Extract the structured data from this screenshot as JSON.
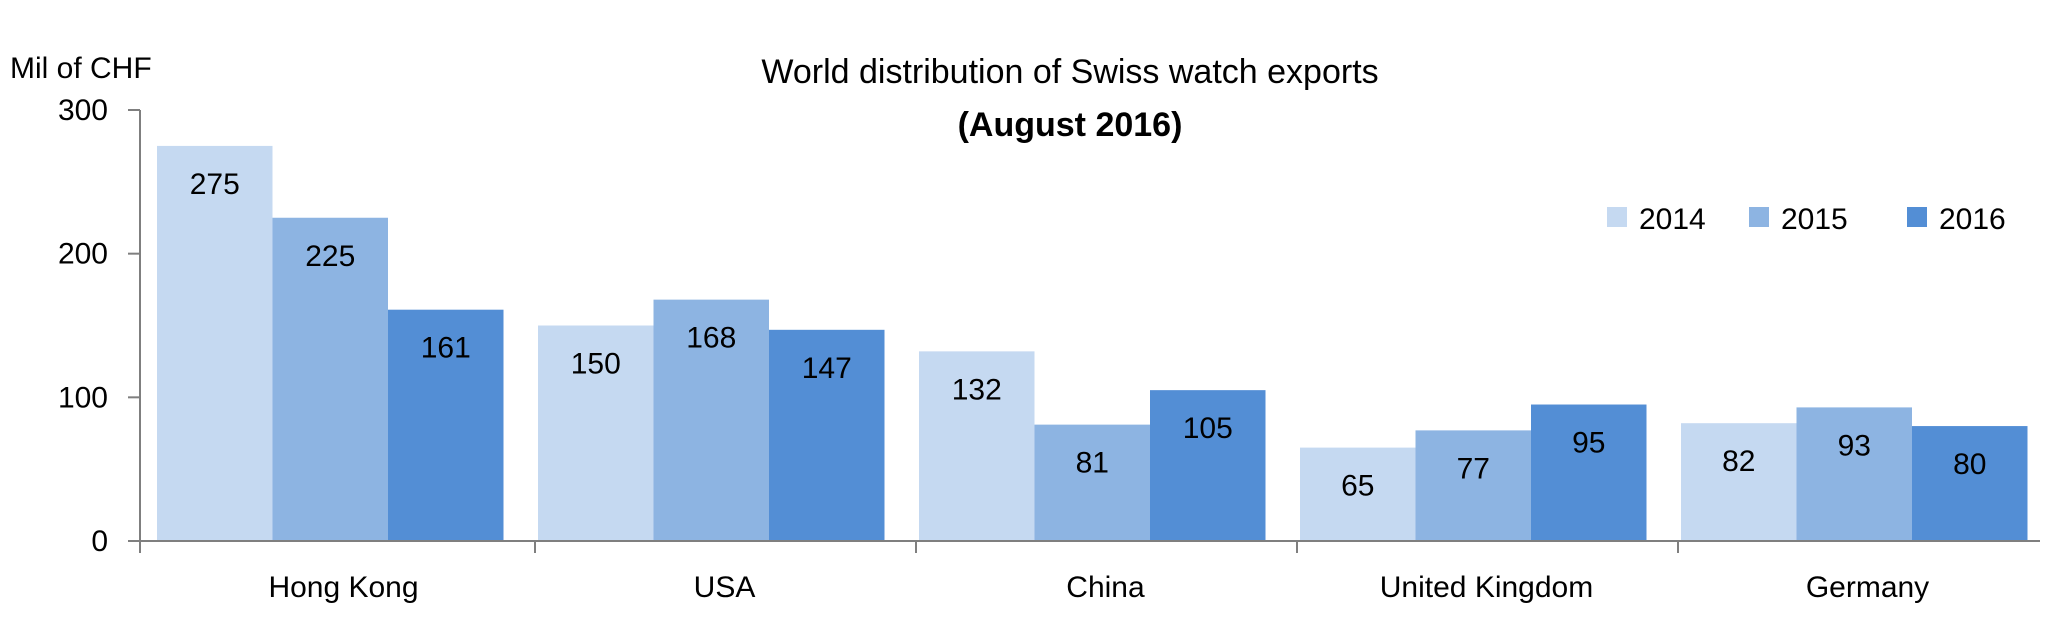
{
  "chart_data": {
    "type": "bar",
    "title": "World distribution of Swiss watch exports",
    "subtitle": "(August 2016)",
    "ylabel": "Mil of CHF",
    "xlabel": "",
    "ylim": [
      0,
      300
    ],
    "yticks": [
      0,
      100,
      200,
      300
    ],
    "categories": [
      "Hong Kong",
      "USA",
      "China",
      "United Kingdom",
      "Germany"
    ],
    "series": [
      {
        "name": "2014",
        "values": [
          275,
          150,
          132,
          65,
          82
        ],
        "color": "#c5d9f1"
      },
      {
        "name": "2015",
        "values": [
          225,
          168,
          81,
          77,
          93
        ],
        "color": "#8db4e2"
      },
      {
        "name": "2016",
        "values": [
          161,
          147,
          105,
          95,
          80
        ],
        "color": "#538ed5"
      }
    ],
    "data_labels": true,
    "legend_position": "top-right",
    "grid": false,
    "axis_color": "#7f7f7f"
  }
}
